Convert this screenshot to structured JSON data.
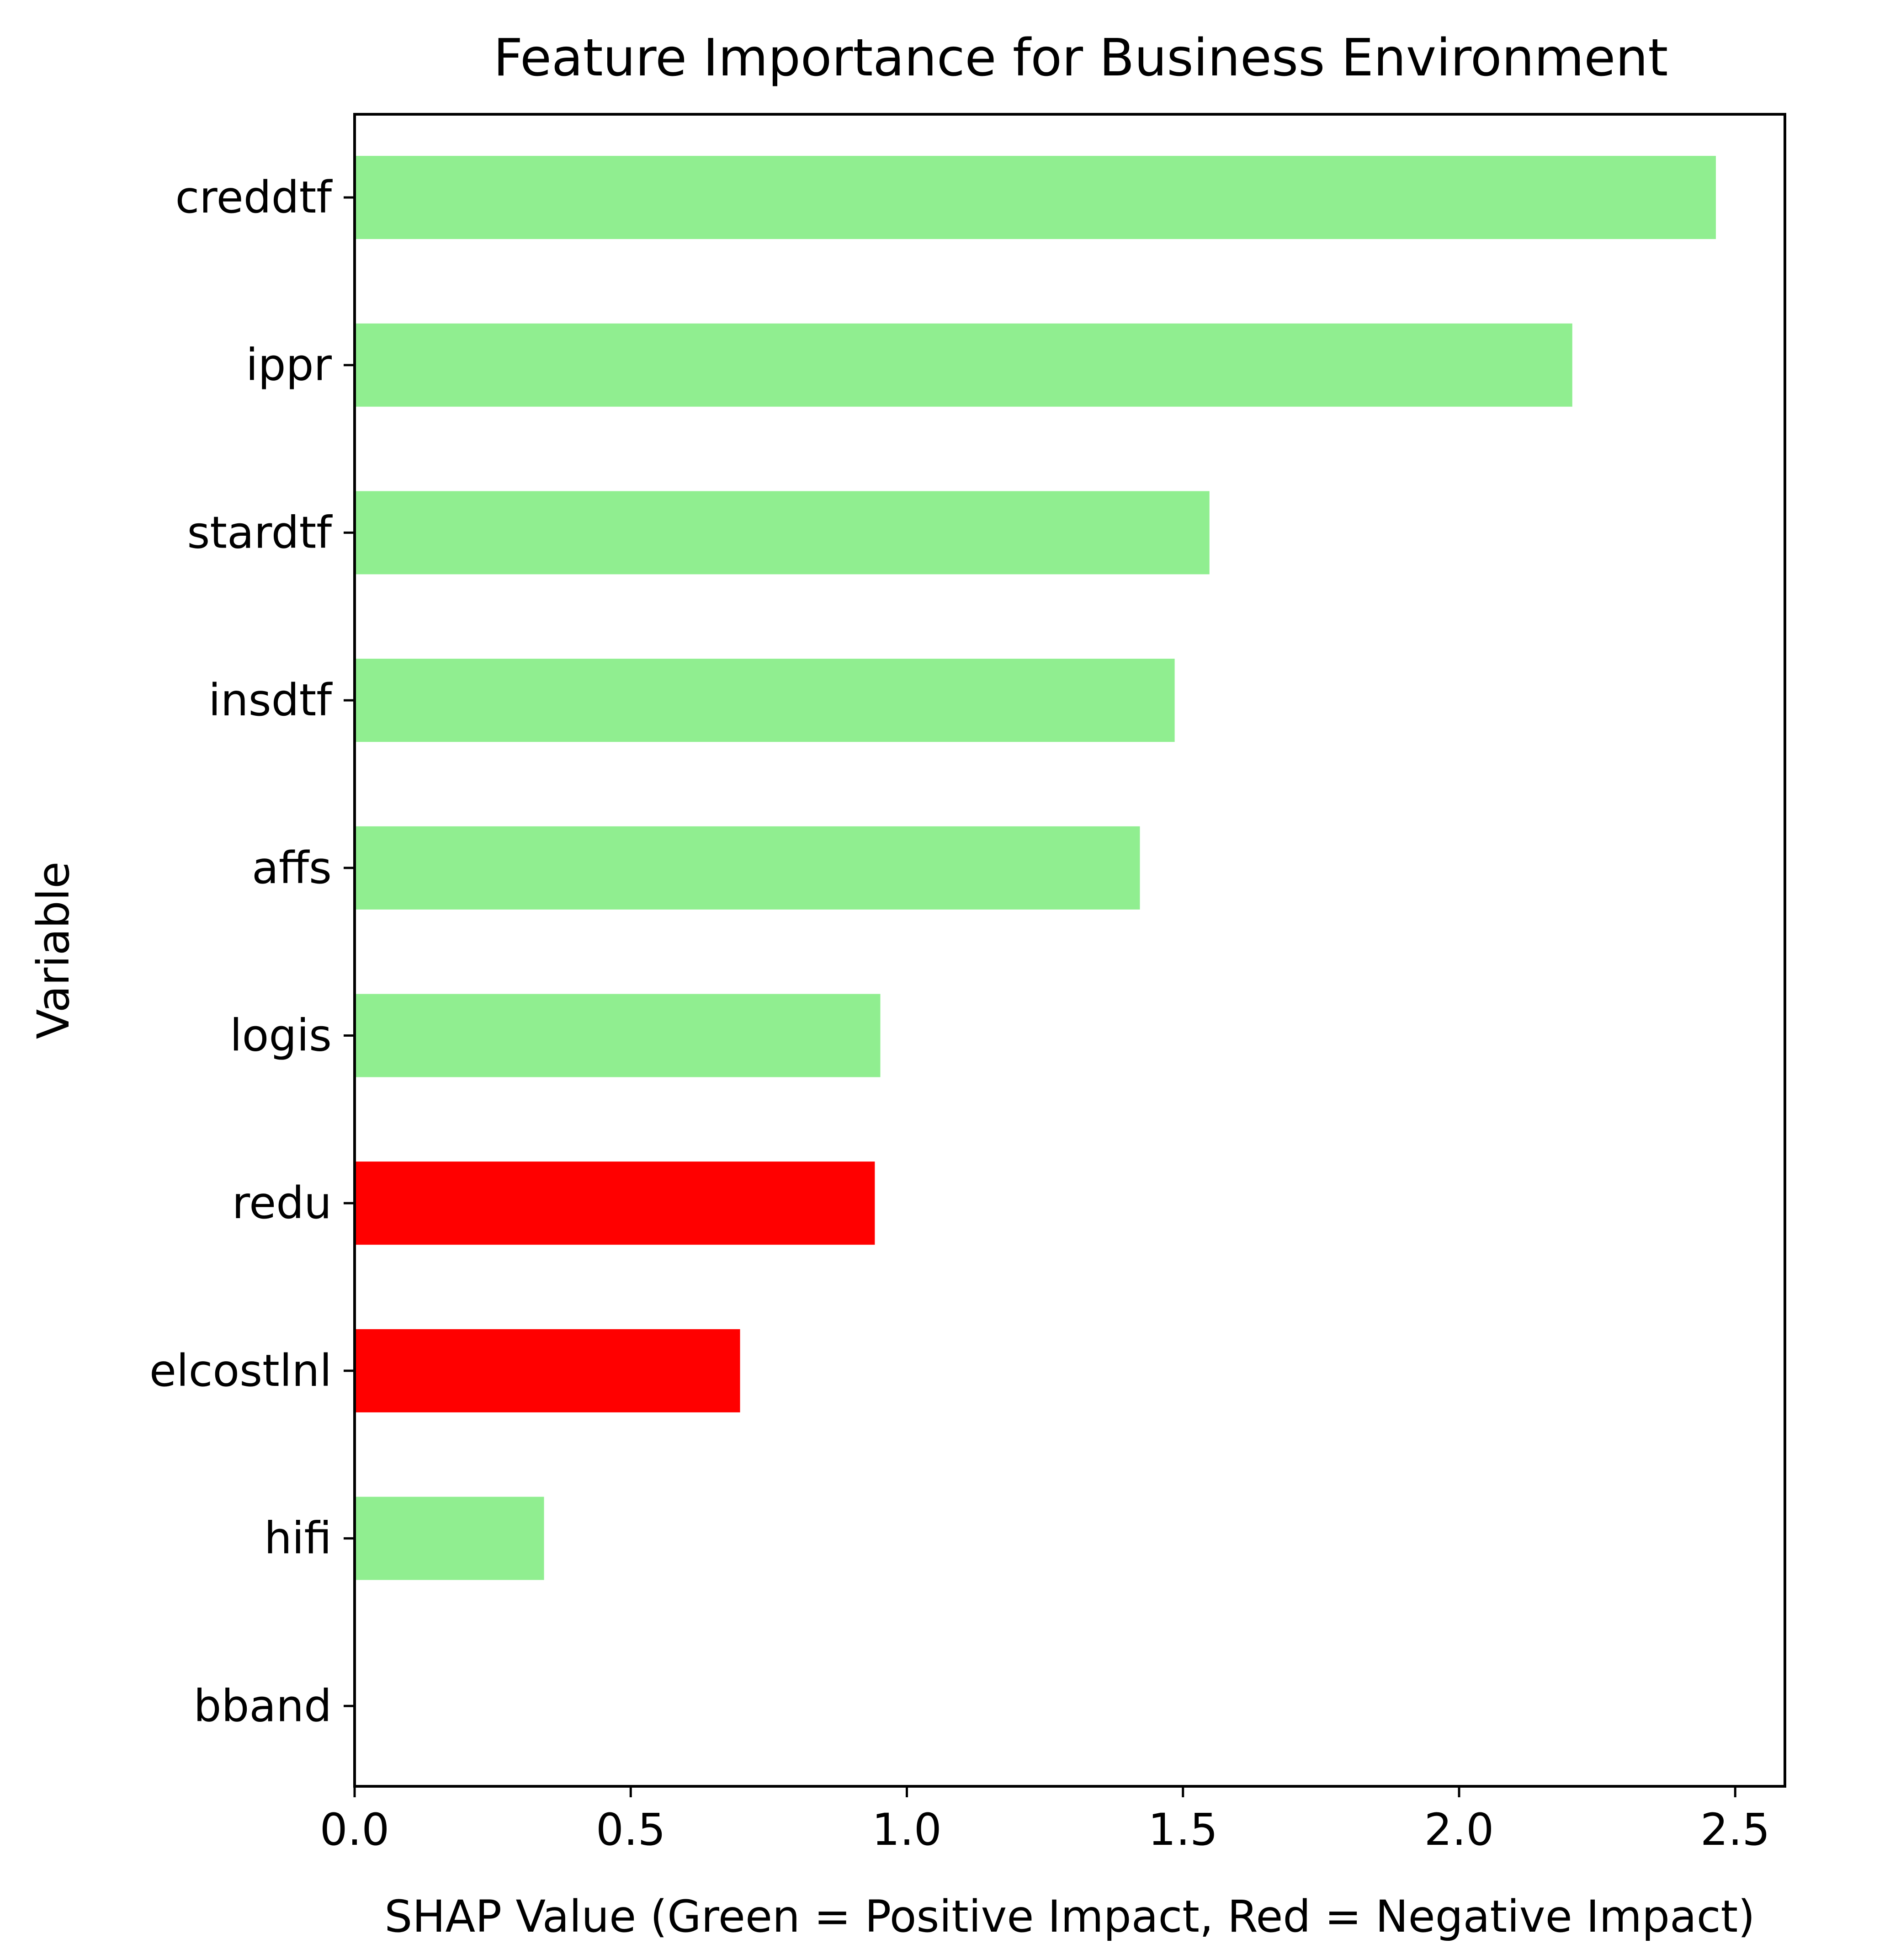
{
  "chart_data": {
    "type": "bar",
    "orientation": "horizontal",
    "title": "Feature Importance for Business Environment",
    "xlabel": "SHAP Value (Green = Positive Impact, Red = Negative Impact)",
    "ylabel": "Variable",
    "categories": [
      "creddtf",
      "ippr",
      "stardtf",
      "insdtf",
      "affs",
      "logis",
      "redu",
      "elcostlnl",
      "hifi",
      "bband"
    ],
    "values": [
      2.465,
      2.205,
      1.548,
      1.485,
      1.422,
      0.952,
      0.942,
      0.698,
      0.343,
      0.0
    ],
    "impact": [
      "positive",
      "positive",
      "positive",
      "positive",
      "positive",
      "positive",
      "negative",
      "negative",
      "positive",
      "positive"
    ],
    "xlim": [
      0,
      2.59
    ],
    "xticks": [
      0.0,
      0.5,
      1.0,
      1.5,
      2.0,
      2.5
    ],
    "xtick_labels": [
      "0.0",
      "0.5",
      "1.0",
      "1.5",
      "2.0",
      "2.5"
    ],
    "grid": false,
    "legend": "none",
    "colors": {
      "positive": "#90ee90",
      "negative": "#ff0000",
      "axis": "#000000",
      "background": "#ffffff"
    }
  }
}
